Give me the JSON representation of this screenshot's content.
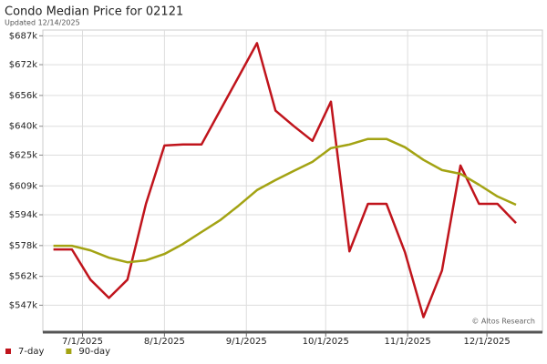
{
  "chart_data": {
    "type": "line",
    "title": "Condo Median Price for 02121",
    "subtitle": "Updated 12/14/2025",
    "watermark": "© Altos Research",
    "x": [
      "2025-06-20",
      "2025-06-27",
      "2025-07-04",
      "2025-07-11",
      "2025-07-18",
      "2025-07-25",
      "2025-08-01",
      "2025-08-08",
      "2025-08-15",
      "2025-08-22",
      "2025-08-29",
      "2025-09-05",
      "2025-09-12",
      "2025-09-19",
      "2025-09-26",
      "2025-10-03",
      "2025-10-10",
      "2025-10-17",
      "2025-10-24",
      "2025-10-31",
      "2025-11-07",
      "2025-11-14",
      "2025-11-21",
      "2025-11-28",
      "2025-12-05",
      "2025-12-12"
    ],
    "series": [
      {
        "name": "7-day",
        "color": "#c0141c",
        "values": [
          576000,
          576000,
          560300,
          550800,
          560300,
          599700,
          630000,
          630500,
          630500,
          648100,
          665600,
          683200,
          648100,
          640000,
          632400,
          652800,
          575000,
          599700,
          599700,
          574500,
          540800,
          565000,
          619600,
          599700,
          599700,
          589700
        ]
      },
      {
        "name": "90-day",
        "color": "#a3a313",
        "values": [
          577900,
          577900,
          575500,
          571700,
          569300,
          570300,
          573600,
          578800,
          585000,
          591100,
          598700,
          606800,
          612000,
          616800,
          621500,
          628600,
          630500,
          633400,
          633400,
          629100,
          622500,
          617200,
          615300,
          609600,
          603500,
          599200
        ]
      }
    ],
    "xlim": [
      "2025-06-16",
      "2025-12-22"
    ],
    "xticks": [
      {
        "value": "2025-07-01",
        "label": "7/1/2025"
      },
      {
        "value": "2025-08-01",
        "label": "8/1/2025"
      },
      {
        "value": "2025-09-01",
        "label": "9/1/2025"
      },
      {
        "value": "2025-10-01",
        "label": "10/1/2025"
      },
      {
        "value": "2025-11-01",
        "label": "11/1/2025"
      },
      {
        "value": "2025-12-01",
        "label": "12/1/2025"
      }
    ],
    "ylim": [
      533000,
      690000
    ],
    "yticks": [
      {
        "value": 547000,
        "label": "$547k"
      },
      {
        "value": 562000,
        "label": "$562k"
      },
      {
        "value": 578000,
        "label": "$578k"
      },
      {
        "value": 594000,
        "label": "$594k"
      },
      {
        "value": 609000,
        "label": "$609k"
      },
      {
        "value": 625000,
        "label": "$625k"
      },
      {
        "value": 640000,
        "label": "$640k"
      },
      {
        "value": 656000,
        "label": "$656k"
      },
      {
        "value": 672000,
        "label": "$672k"
      },
      {
        "value": 687000,
        "label": "$687k"
      }
    ],
    "grid": true,
    "legend": "bottom-left"
  }
}
